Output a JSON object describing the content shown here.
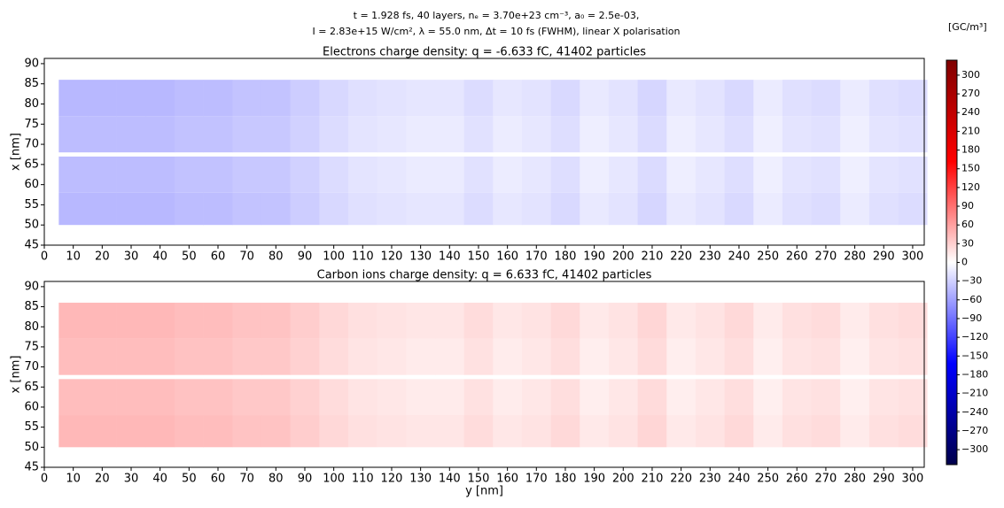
{
  "figure_title": [
    "t = 1.928 fs, 40 layers, nₑ = 3.70e+23 cm⁻³, a₀ = 2.5e-03,",
    "I = 2.83e+15 W/cm², λ = 55.0 nm, Δt = 10 fs (FWHM), linear X polarisation"
  ],
  "colorbar": {
    "label": "[GC/m³]",
    "lim": [
      -324,
      324
    ],
    "colormap": [
      "#00004c",
      "#0000ff",
      "#ffffff",
      "#ff0000",
      "#7f0000"
    ],
    "ticks": [
      {
        "value": -300,
        "label": "−300"
      },
      {
        "value": -270,
        "label": "−270"
      },
      {
        "value": -240,
        "label": "−240"
      },
      {
        "value": -210,
        "label": "−210"
      },
      {
        "value": -180,
        "label": "−180"
      },
      {
        "value": -150,
        "label": "−150"
      },
      {
        "value": -120,
        "label": "−120"
      },
      {
        "value": -90,
        "label": "−90"
      },
      {
        "value": -60,
        "label": "−60"
      },
      {
        "value": -30,
        "label": "−30"
      },
      0,
      30,
      60,
      90,
      120,
      150,
      180,
      210,
      240,
      270,
      300
    ]
  },
  "chart_data": [
    {
      "type": "heatmap",
      "title": "Electrons charge density: q = -6.633 fC, 41402 particles",
      "ylabel": "x [nm]",
      "xlim": [
        0,
        304
      ],
      "xticks": [
        0,
        10,
        20,
        30,
        40,
        50,
        60,
        70,
        80,
        90,
        100,
        110,
        120,
        130,
        140,
        150,
        160,
        170,
        180,
        190,
        200,
        210,
        220,
        230,
        240,
        250,
        260,
        270,
        280,
        290,
        300
      ],
      "ylim": [
        45,
        91.3
      ],
      "yticks": [
        45,
        50,
        55,
        60,
        65,
        70,
        75,
        80,
        85,
        90
      ],
      "y_edges": [
        5,
        15,
        25,
        35,
        45,
        55,
        65,
        75,
        85,
        95,
        105,
        115,
        125,
        135,
        145,
        155,
        165,
        175,
        185,
        195,
        205,
        215,
        225,
        235,
        245,
        255,
        265,
        275,
        285,
        295,
        305
      ],
      "x_edges": [
        50,
        58,
        67,
        68,
        77,
        86
      ],
      "z": [
        [
          -45,
          -45,
          -45,
          -45,
          -42,
          -42,
          -38,
          -38,
          -32,
          -25,
          -20,
          -18,
          -16,
          -16,
          -22,
          -15,
          -18,
          -24,
          -14,
          -18,
          -26,
          -14,
          -18,
          -24,
          -13,
          -20,
          -22,
          -13,
          -20,
          -22
        ],
        [
          -42,
          -42,
          -42,
          -42,
          -39,
          -39,
          -35,
          -35,
          -29,
          -22,
          -17,
          -15,
          -13,
          -13,
          -19,
          -12,
          -15,
          -21,
          -11,
          -15,
          -23,
          -11,
          -15,
          -21,
          -10,
          -17,
          -19,
          -10,
          -17,
          -19
        ],
        [
          0,
          0,
          0,
          0,
          0,
          0,
          0,
          0,
          0,
          0,
          0,
          0,
          0,
          0,
          0,
          0,
          0,
          0,
          0,
          0,
          0,
          0,
          0,
          0,
          0,
          0,
          0,
          0,
          0,
          0
        ],
        [
          -42,
          -42,
          -42,
          -42,
          -39,
          -39,
          -35,
          -35,
          -29,
          -22,
          -17,
          -15,
          -13,
          -13,
          -19,
          -12,
          -15,
          -21,
          -11,
          -15,
          -23,
          -11,
          -15,
          -21,
          -10,
          -17,
          -19,
          -10,
          -17,
          -19
        ],
        [
          -45,
          -45,
          -45,
          -45,
          -42,
          -42,
          -38,
          -38,
          -32,
          -25,
          -20,
          -18,
          -16,
          -16,
          -22,
          -15,
          -18,
          -24,
          -14,
          -18,
          -26,
          -14,
          -18,
          -24,
          -13,
          -20,
          -22,
          -13,
          -20,
          -22
        ]
      ]
    },
    {
      "type": "heatmap",
      "title": "Carbon ions charge density: q = 6.633 fC, 41402 particles",
      "ylabel": "x [nm]",
      "xlabel": "y [nm]",
      "xlim": [
        0,
        304
      ],
      "xticks": [
        0,
        10,
        20,
        30,
        40,
        50,
        60,
        70,
        80,
        90,
        100,
        110,
        120,
        130,
        140,
        150,
        160,
        170,
        180,
        190,
        200,
        210,
        220,
        230,
        240,
        250,
        260,
        270,
        280,
        290,
        300
      ],
      "ylim": [
        45,
        91.3
      ],
      "yticks": [
        45,
        50,
        55,
        60,
        65,
        70,
        75,
        80,
        85,
        90
      ],
      "y_edges": [
        5,
        15,
        25,
        35,
        45,
        55,
        65,
        75,
        85,
        95,
        105,
        115,
        125,
        135,
        145,
        155,
        165,
        175,
        185,
        195,
        205,
        215,
        225,
        235,
        245,
        255,
        265,
        275,
        285,
        295,
        305
      ],
      "x_edges": [
        50,
        58,
        67,
        68,
        77,
        86
      ],
      "z": [
        [
          45,
          45,
          45,
          45,
          42,
          42,
          38,
          38,
          32,
          25,
          20,
          18,
          16,
          16,
          22,
          15,
          18,
          24,
          14,
          18,
          26,
          14,
          18,
          24,
          13,
          20,
          22,
          13,
          20,
          22
        ],
        [
          42,
          42,
          42,
          42,
          39,
          39,
          35,
          35,
          29,
          22,
          17,
          15,
          13,
          13,
          19,
          12,
          15,
          21,
          11,
          15,
          23,
          11,
          15,
          21,
          10,
          17,
          19,
          10,
          17,
          19
        ],
        [
          0,
          0,
          0,
          0,
          0,
          0,
          0,
          0,
          0,
          0,
          0,
          0,
          0,
          0,
          0,
          0,
          0,
          0,
          0,
          0,
          0,
          0,
          0,
          0,
          0,
          0,
          0,
          0,
          0,
          0
        ],
        [
          42,
          42,
          42,
          42,
          39,
          39,
          35,
          35,
          29,
          22,
          17,
          15,
          13,
          13,
          19,
          12,
          15,
          21,
          11,
          15,
          23,
          11,
          15,
          21,
          10,
          17,
          19,
          10,
          17,
          19
        ],
        [
          45,
          45,
          45,
          45,
          42,
          42,
          38,
          38,
          32,
          25,
          20,
          18,
          16,
          16,
          22,
          15,
          18,
          24,
          14,
          18,
          26,
          14,
          18,
          24,
          13,
          20,
          22,
          13,
          20,
          22
        ]
      ]
    }
  ]
}
